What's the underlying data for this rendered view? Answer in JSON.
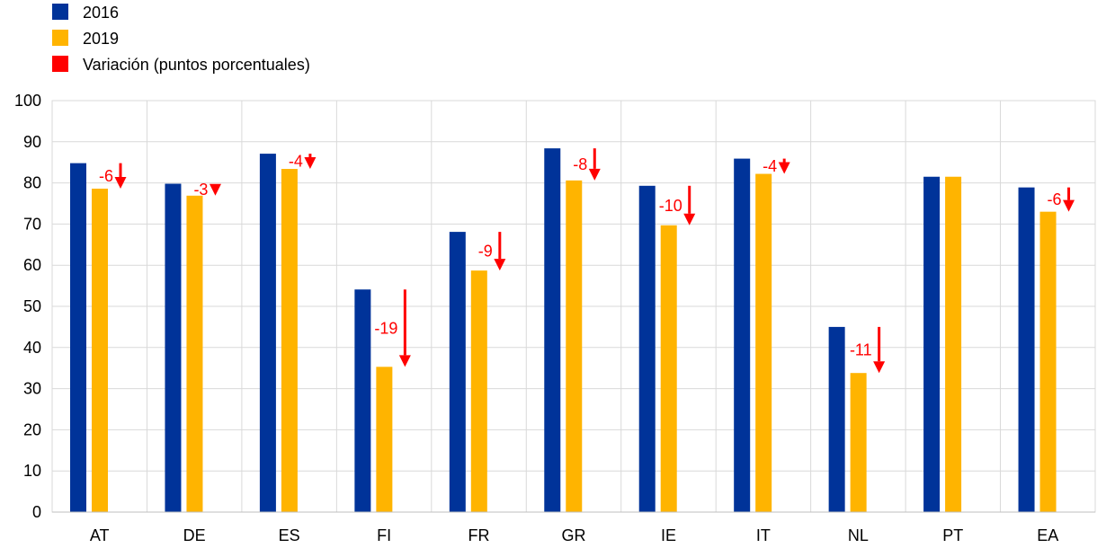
{
  "chart_data": {
    "type": "bar",
    "title": "",
    "xlabel": "",
    "ylabel": "",
    "ylim": [
      0,
      100
    ],
    "yticks": [
      0,
      10,
      20,
      30,
      40,
      50,
      60,
      70,
      80,
      90,
      100
    ],
    "grid": true,
    "legend_position": "top-left",
    "categories": [
      "AT",
      "DE",
      "ES",
      "FI",
      "FR",
      "GR",
      "IE",
      "IT",
      "NL",
      "PT",
      "EA"
    ],
    "series": [
      {
        "name": "2016",
        "color": "#003399",
        "values": [
          84.8,
          79.8,
          87.1,
          54.1,
          68.1,
          88.4,
          79.3,
          85.9,
          45.0,
          81.5,
          78.9
        ]
      },
      {
        "name": "2019",
        "color": "#ffb400",
        "values": [
          78.6,
          76.9,
          83.4,
          35.3,
          58.7,
          80.6,
          69.7,
          82.2,
          33.8,
          81.5,
          73.0
        ]
      }
    ],
    "change": {
      "name": "Variación (puntos porcentuales)",
      "color": "#ff0000",
      "labels": [
        "-6",
        "-3",
        "-4",
        "-19",
        "-9",
        "-8",
        "-10",
        "-4",
        "-11",
        "",
        "-6"
      ]
    }
  }
}
